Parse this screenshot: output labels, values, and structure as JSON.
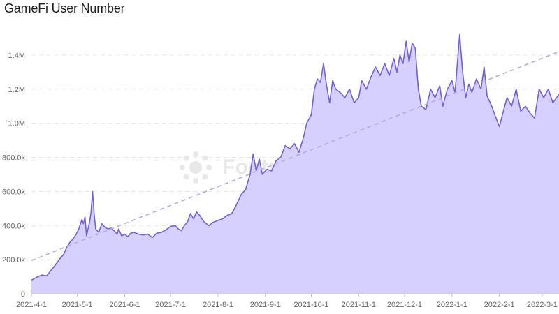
{
  "title": "GameFi User Number",
  "watermark": "Footprint Analytics",
  "colors": {
    "line": "#7460d8",
    "area": "#d6d0ff",
    "trend": "#b5a9ea",
    "grid": "#e6e6e6",
    "axis": "#666666"
  },
  "chart_data": {
    "type": "area",
    "title": "GameFi User Number",
    "xlabel": "",
    "ylabel": "",
    "ylim": [
      0,
      1600000
    ],
    "yticks": [
      {
        "value": 0,
        "label": "0"
      },
      {
        "value": 200000,
        "label": "200.0k"
      },
      {
        "value": 400000,
        "label": "400.0k"
      },
      {
        "value": 600000,
        "label": "600.0k"
      },
      {
        "value": 800000,
        "label": "800.0k"
      },
      {
        "value": 1000000,
        "label": "1.0M"
      },
      {
        "value": 1200000,
        "label": "1.2M"
      },
      {
        "value": 1400000,
        "label": "1.4M"
      }
    ],
    "xticks": [
      "2021-4-1",
      "2021-5-1",
      "2021-6-1",
      "2021-7-1",
      "2021-8-1",
      "2021-9-1",
      "2021-10-1",
      "2021-11-1",
      "2021-12-1",
      "2022-1-1",
      "2022-2-1",
      "2022-3-1"
    ],
    "xlim": [
      "2021-4-1",
      "2022-3-12"
    ],
    "grid": true,
    "trendline": {
      "style": "dashed",
      "start": [
        "2021-4-1",
        195000
      ],
      "end": [
        "2022-3-12",
        1420000
      ]
    },
    "series": [
      {
        "points": [
          [
            "2021-4-1",
            80000
          ],
          [
            "2021-4-5",
            100000
          ],
          [
            "2021-4-8",
            110000
          ],
          [
            "2021-4-11",
            105000
          ],
          [
            "2021-4-15",
            150000
          ],
          [
            "2021-4-18",
            185000
          ],
          [
            "2021-4-20",
            210000
          ],
          [
            "2021-4-22",
            230000
          ],
          [
            "2021-4-24",
            270000
          ],
          [
            "2021-4-26",
            300000
          ],
          [
            "2021-4-28",
            320000
          ],
          [
            "2021-4-30",
            345000
          ],
          [
            "2021-5-2",
            380000
          ],
          [
            "2021-5-4",
            435000
          ],
          [
            "2021-5-5",
            410000
          ],
          [
            "2021-5-6",
            450000
          ],
          [
            "2021-5-7",
            340000
          ],
          [
            "2021-5-8",
            380000
          ],
          [
            "2021-5-9",
            420000
          ],
          [
            "2021-5-10",
            480000
          ],
          [
            "2021-5-11",
            600000
          ],
          [
            "2021-5-12",
            470000
          ],
          [
            "2021-5-13",
            380000
          ],
          [
            "2021-5-15",
            360000
          ],
          [
            "2021-5-17",
            410000
          ],
          [
            "2021-5-19",
            390000
          ],
          [
            "2021-5-21",
            380000
          ],
          [
            "2021-5-23",
            385000
          ],
          [
            "2021-5-25",
            370000
          ],
          [
            "2021-5-27",
            350000
          ],
          [
            "2021-5-28",
            380000
          ],
          [
            "2021-5-30",
            340000
          ],
          [
            "2021-6-1",
            350000
          ],
          [
            "2021-6-3",
            335000
          ],
          [
            "2021-6-5",
            355000
          ],
          [
            "2021-6-7",
            360000
          ],
          [
            "2021-6-10",
            350000
          ],
          [
            "2021-6-13",
            345000
          ],
          [
            "2021-6-16",
            350000
          ],
          [
            "2021-6-19",
            330000
          ],
          [
            "2021-6-22",
            355000
          ],
          [
            "2021-6-25",
            360000
          ],
          [
            "2021-6-28",
            375000
          ],
          [
            "2021-7-1",
            395000
          ],
          [
            "2021-7-4",
            400000
          ],
          [
            "2021-7-6",
            380000
          ],
          [
            "2021-7-8",
            370000
          ],
          [
            "2021-7-10",
            400000
          ],
          [
            "2021-7-12",
            420000
          ],
          [
            "2021-7-14",
            470000
          ],
          [
            "2021-7-16",
            440000
          ],
          [
            "2021-7-18",
            480000
          ],
          [
            "2021-7-20",
            460000
          ],
          [
            "2021-7-23",
            420000
          ],
          [
            "2021-7-26",
            400000
          ],
          [
            "2021-7-29",
            420000
          ],
          [
            "2021-8-1",
            430000
          ],
          [
            "2021-8-4",
            440000
          ],
          [
            "2021-8-7",
            460000
          ],
          [
            "2021-8-10",
            470000
          ],
          [
            "2021-8-13",
            520000
          ],
          [
            "2021-8-16",
            580000
          ],
          [
            "2021-8-19",
            610000
          ],
          [
            "2021-8-22",
            700000
          ],
          [
            "2021-8-24",
            820000
          ],
          [
            "2021-8-26",
            720000
          ],
          [
            "2021-8-28",
            790000
          ],
          [
            "2021-8-30",
            700000
          ],
          [
            "2021-9-2",
            730000
          ],
          [
            "2021-9-5",
            720000
          ],
          [
            "2021-9-8",
            780000
          ],
          [
            "2021-9-11",
            800000
          ],
          [
            "2021-9-14",
            870000
          ],
          [
            "2021-9-17",
            850000
          ],
          [
            "2021-9-20",
            880000
          ],
          [
            "2021-9-23",
            830000
          ],
          [
            "2021-9-26",
            920000
          ],
          [
            "2021-9-28",
            1000000
          ],
          [
            "2021-10-1",
            1050000
          ],
          [
            "2021-10-3",
            1200000
          ],
          [
            "2021-10-5",
            1260000
          ],
          [
            "2021-10-7",
            1240000
          ],
          [
            "2021-10-9",
            1350000
          ],
          [
            "2021-10-11",
            1220000
          ],
          [
            "2021-10-13",
            1120000
          ],
          [
            "2021-10-15",
            1250000
          ],
          [
            "2021-10-17",
            1200000
          ],
          [
            "2021-10-20",
            1180000
          ],
          [
            "2021-10-23",
            1150000
          ],
          [
            "2021-10-26",
            1200000
          ],
          [
            "2021-10-29",
            1120000
          ],
          [
            "2021-11-1",
            1150000
          ],
          [
            "2021-11-3",
            1250000
          ],
          [
            "2021-11-6",
            1200000
          ],
          [
            "2021-11-9",
            1270000
          ],
          [
            "2021-11-12",
            1330000
          ],
          [
            "2021-11-15",
            1280000
          ],
          [
            "2021-11-18",
            1350000
          ],
          [
            "2021-11-21",
            1280000
          ],
          [
            "2021-11-24",
            1380000
          ],
          [
            "2021-11-26",
            1300000
          ],
          [
            "2021-11-28",
            1400000
          ],
          [
            "2021-11-30",
            1350000
          ],
          [
            "2021-12-2",
            1480000
          ],
          [
            "2021-12-4",
            1360000
          ],
          [
            "2021-12-6",
            1470000
          ],
          [
            "2021-12-8",
            1440000
          ],
          [
            "2021-12-10",
            1200000
          ],
          [
            "2021-12-12",
            1100000
          ],
          [
            "2021-12-15",
            1080000
          ],
          [
            "2021-12-18",
            1200000
          ],
          [
            "2021-12-21",
            1150000
          ],
          [
            "2021-12-24",
            1220000
          ],
          [
            "2021-12-26",
            1100000
          ],
          [
            "2021-12-29",
            1200000
          ],
          [
            "2022-1-1",
            1250000
          ],
          [
            "2022-1-3",
            1180000
          ],
          [
            "2022-1-6",
            1520000
          ],
          [
            "2022-1-8",
            1300000
          ],
          [
            "2022-1-10",
            1150000
          ],
          [
            "2022-1-12",
            1230000
          ],
          [
            "2022-1-14",
            1180000
          ],
          [
            "2022-1-17",
            1260000
          ],
          [
            "2022-1-20",
            1200000
          ],
          [
            "2022-1-22",
            1330000
          ],
          [
            "2022-1-24",
            1160000
          ],
          [
            "2022-1-27",
            1100000
          ],
          [
            "2022-1-29",
            1050000
          ],
          [
            "2022-2-1",
            980000
          ],
          [
            "2022-2-3",
            1050000
          ],
          [
            "2022-2-6",
            1150000
          ],
          [
            "2022-2-9",
            1100000
          ],
          [
            "2022-2-12",
            1200000
          ],
          [
            "2022-2-15",
            1070000
          ],
          [
            "2022-2-18",
            1100000
          ],
          [
            "2022-2-21",
            1060000
          ],
          [
            "2022-2-24",
            1030000
          ],
          [
            "2022-2-27",
            1200000
          ],
          [
            "2022-3-2",
            1150000
          ],
          [
            "2022-3-5",
            1200000
          ],
          [
            "2022-3-8",
            1120000
          ],
          [
            "2022-3-12",
            1170000
          ]
        ]
      }
    ]
  }
}
